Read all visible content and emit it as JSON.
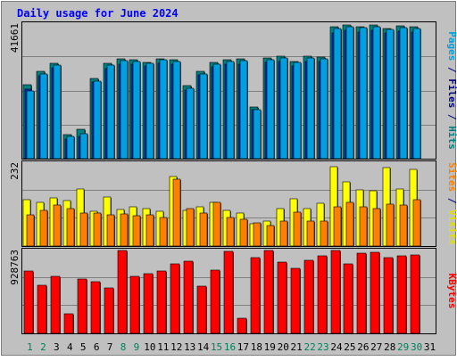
{
  "chart_data": {
    "type": "bar",
    "title": "Daily usage for June 2024",
    "categories": [
      "1",
      "2",
      "3",
      "4",
      "5",
      "6",
      "7",
      "8",
      "9",
      "10",
      "11",
      "12",
      "13",
      "14",
      "15",
      "16",
      "17",
      "18",
      "19",
      "20",
      "21",
      "22",
      "23",
      "24",
      "25",
      "26",
      "27",
      "28",
      "29",
      "30",
      "31"
    ],
    "weekend_days": [
      "1",
      "2",
      "8",
      "9",
      "15",
      "16",
      "22",
      "23",
      "29",
      "30"
    ],
    "panels": [
      {
        "id": "hits",
        "ylabel_parts": [
          {
            "text": "Pages",
            "color": "#00a0e0"
          },
          {
            "text": " / ",
            "color": "#000080"
          },
          {
            "text": "Files",
            "color": "#000080"
          },
          {
            "text": " / ",
            "color": "#000080"
          },
          {
            "text": "Hits",
            "color": "#008080"
          }
        ],
        "ymax_label": "41661",
        "ylim": [
          0,
          41661
        ],
        "series": [
          {
            "name": "Hits",
            "color": "#008080",
            "values": [
              23000,
              27000,
              29500,
              7500,
              9000,
              24700,
              29500,
              30800,
              30600,
              29900,
              31000,
              30700,
              22700,
              27100,
              29800,
              30700,
              30800,
              16000,
              31100,
              31600,
              30100,
              31700,
              31500,
              40700,
              41300,
              40900,
              41300,
              40400,
              41100,
              40800,
              0
            ]
          },
          {
            "name": "Files",
            "color": "#0030c0",
            "values": [
              21500,
              25700,
              28200,
              6200,
              7000,
              23700,
              28000,
              29300,
              29200,
              28600,
              29500,
              29300,
              21300,
              25800,
              28300,
              29200,
              29300,
              15200,
              29700,
              30200,
              28800,
              30200,
              30000,
              39000,
              39700,
              39300,
              39700,
              38800,
              39500,
              39200,
              0
            ]
          },
          {
            "name": "Pages",
            "color": "#00a0e0",
            "values": [
              21000,
              26300,
              29000,
              7000,
              7800,
              23900,
              29000,
              30300,
              30100,
              29500,
              30500,
              30200,
              21800,
              26300,
              29200,
              30200,
              30300,
              15300,
              30600,
              31100,
              29700,
              31100,
              31000,
              40400,
              40800,
              40500,
              40800,
              39900,
              40600,
              40300,
              0
            ]
          }
        ]
      },
      {
        "id": "visits",
        "ylabel_parts": [
          {
            "text": "Sites",
            "color": "#ff8000"
          },
          {
            "text": " / ",
            "color": "#000080"
          },
          {
            "text": "Visits",
            "color": "#e0e000"
          }
        ],
        "ymax_label": "232",
        "ylim": [
          0,
          232
        ],
        "series": [
          {
            "name": "Visits",
            "color": "#ffff00",
            "values": [
              130,
              122,
              135,
              127,
              160,
              97,
              138,
              103,
              110,
              105,
              98,
              195,
              100,
              110,
              122,
              100,
              93,
              63,
              71,
              105,
              131,
              106,
              120,
              222,
              179,
              158,
              155,
              220,
              160,
              215,
              0
            ]
          },
          {
            "name": "Sites",
            "color": "#ff8000",
            "values": [
              88,
              99,
              115,
              105,
              92,
              93,
              88,
              90,
              84,
              88,
              79,
              187,
              104,
              92,
              122,
              80,
              75,
              65,
              57,
              71,
              95,
              70,
              70,
              110,
              123,
              110,
              105,
              117,
              115,
              130,
              0
            ]
          }
        ]
      },
      {
        "id": "kbytes",
        "ylabel_parts": [
          {
            "text": "KBytes",
            "color": "#ff0000"
          }
        ],
        "ymax_label": "928763",
        "ylim": [
          0,
          928763
        ],
        "series": [
          {
            "name": "KBytes",
            "color": "#ff0000",
            "values": [
              699000,
              536000,
              635000,
              222000,
              610000,
              582000,
              506000,
              929000,
              639000,
              671000,
              701000,
              780000,
              804000,
              528000,
              706000,
              920000,
              169000,
              845000,
              928000,
              798000,
              731000,
              819000,
              870000,
              928763,
              779000,
              901000,
              907000,
              853000,
              865000,
              881000,
              0
            ]
          }
        ]
      }
    ]
  }
}
